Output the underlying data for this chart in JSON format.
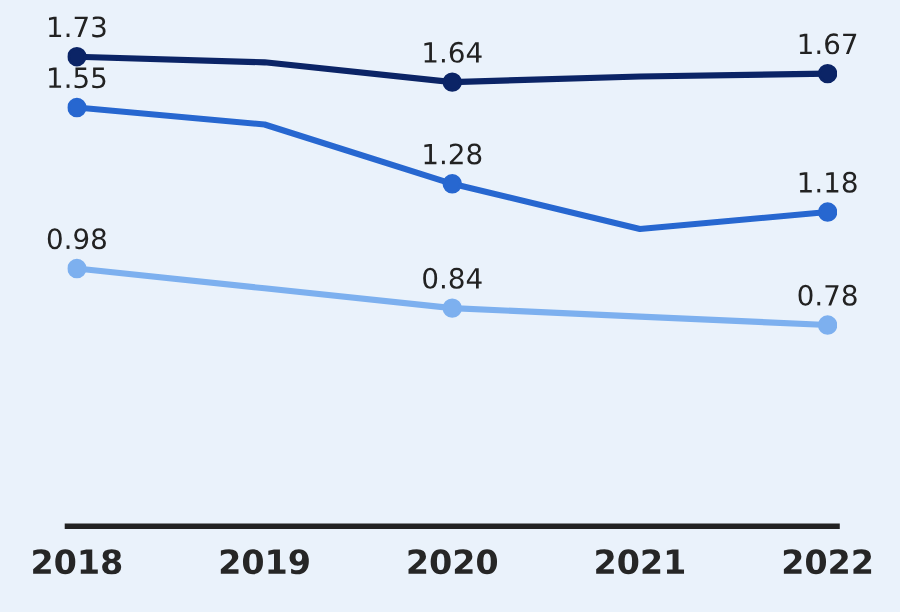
{
  "chart_data": {
    "type": "line",
    "categories": [
      "2018",
      "2019",
      "2020",
      "2021",
      "2022"
    ],
    "series": [
      {
        "color": "#0b2466",
        "values": [
          1.73,
          1.71,
          1.64,
          1.66,
          1.67
        ],
        "value_labels": [
          "1.73",
          null,
          "1.64",
          null,
          "1.67"
        ]
      },
      {
        "color": "#2767d0",
        "values": [
          1.55,
          1.49,
          1.28,
          1.12,
          1.18
        ],
        "value_labels": [
          "1.55",
          null,
          "1.28",
          null,
          "1.18"
        ]
      },
      {
        "color": "#7db0ef",
        "values": [
          0.98,
          0.91,
          0.84,
          0.81,
          0.78
        ],
        "value_labels": [
          "0.98",
          null,
          "0.84",
          null,
          "0.78"
        ]
      }
    ],
    "tick_labels": "x",
    "marker": "circle",
    "line_style": "solid",
    "grid": false,
    "legend": false
  }
}
